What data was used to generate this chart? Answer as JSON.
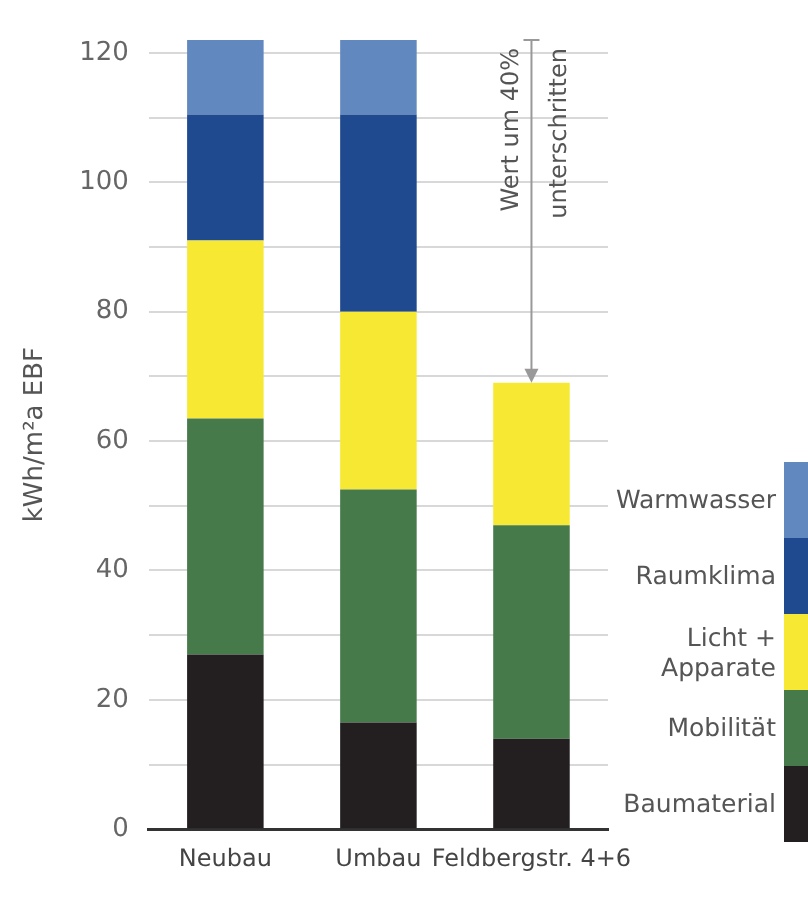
{
  "chart_data": {
    "type": "bar",
    "stacked": true,
    "ylabel": "kWh/m²a EBF",
    "categories": [
      "Neubau",
      "Umbau",
      "Feldbergstr. 4+6"
    ],
    "series": [
      {
        "name": "Baumaterial",
        "color": "#231f20",
        "values": [
          27,
          16.5,
          14
        ]
      },
      {
        "name": "Mobilität",
        "color": "#467a4a",
        "values": [
          36.5,
          36,
          33
        ]
      },
      {
        "name": "Licht + Apparate",
        "color": "#f7e933",
        "values": [
          27.5,
          27.5,
          22
        ]
      },
      {
        "name": "Raumklima",
        "color": "#1f4a90",
        "values": [
          19.5,
          30.5,
          null
        ]
      },
      {
        "name": "Warmwasser",
        "color": "#6288c0",
        "values": [
          11.5,
          11.5,
          null
        ]
      }
    ],
    "ylim": [
      0,
      122
    ],
    "yticks": [
      0,
      {
        "value": 10,
        "label": null
      },
      20,
      {
        "value": 30,
        "label": null
      },
      40,
      {
        "value": 50,
        "label": null
      },
      60,
      {
        "value": 70,
        "label": null
      },
      80,
      {
        "value": 90,
        "label": null
      },
      100,
      {
        "value": 110,
        "label": null
      },
      120
    ],
    "grid": "y",
    "legend": "bottom right",
    "annotations": [
      "Wert um 40% unterschritten"
    ]
  }
}
